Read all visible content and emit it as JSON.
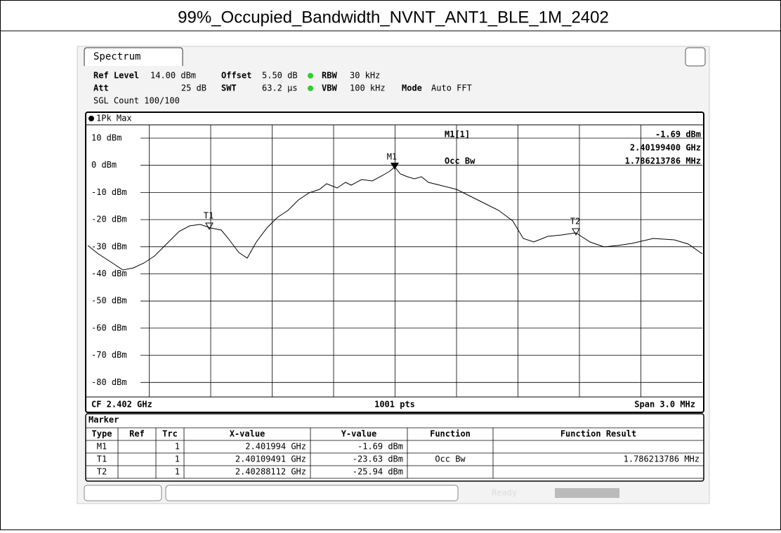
{
  "header": {
    "title": "99%_Occupied_Bandwidth_NVNT_ANT1_BLE_1M_2402"
  },
  "spectrum": {
    "tab": "Spectrum",
    "ref_level_label": "Ref Level",
    "ref_level": "14.00 dBm",
    "offset_label": "Offset",
    "offset": "5.50 dB",
    "rbw_label": "RBW",
    "rbw": "30 kHz",
    "att_label": "Att",
    "att": "25 dB",
    "swt_label": "SWT",
    "swt": "63.2 µs",
    "vbw_label": "VBW",
    "vbw": "100 kHz",
    "mode_label": "Mode",
    "mode": "Auto FFT",
    "sgl": "SGL Count 100/100",
    "trace_label": "1Pk Max"
  },
  "plot": {
    "y_labels": [
      "10 dBm",
      "0 dBm",
      "-10 dBm",
      "-20 dBm",
      "-30 dBm",
      "-40 dBm",
      "-50 dBm",
      "-60 dBm",
      "-70 dBm",
      "-80 dBm"
    ],
    "m1_label": "M1[1]",
    "m1_level": "-1.69 dBm",
    "m1_freq": "2.40199400 GHz",
    "occ_label": "Occ Bw",
    "occ_value": "1.786213786 MHz",
    "markers": [
      "M1",
      "T1",
      "T2"
    ],
    "cf": "CF 2.402 GHz",
    "pts": "1001 pts",
    "span": "Span 3.0 MHz"
  },
  "marker_table": {
    "title": "Marker",
    "headers": [
      "Type",
      "Ref",
      "Trc",
      "X-value",
      "Y-value",
      "Function",
      "Function Result"
    ],
    "rows": [
      [
        "M1",
        "",
        "1",
        "2.401994 GHz",
        "-1.69 dBm",
        "",
        ""
      ],
      [
        "T1",
        "",
        "1",
        "2.40109491 GHz",
        "-23.63 dBm",
        "Occ Bw",
        "1.786213786 MHz"
      ],
      [
        "T2",
        "",
        "1",
        "2.40288112 GHz",
        "-25.94 dBm",
        "",
        ""
      ]
    ]
  },
  "status": {
    "ready": "Ready"
  }
}
